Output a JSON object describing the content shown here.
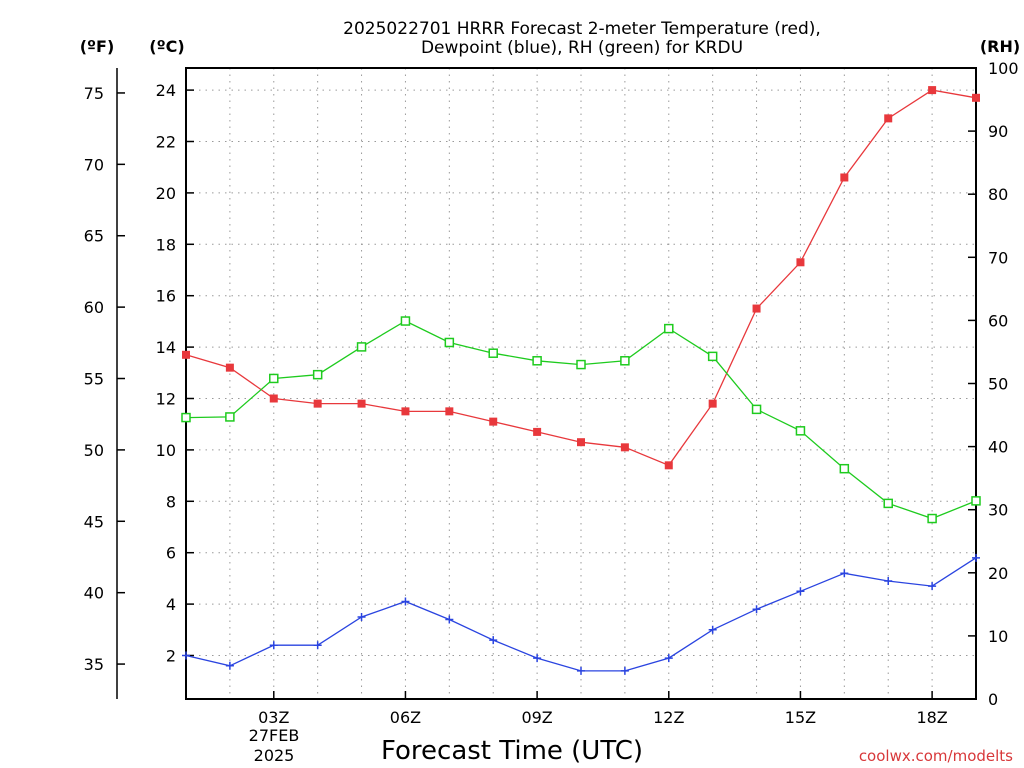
{
  "title_line1": "2025022701 HRRR Forecast 2-meter Temperature (red),",
  "title_line2": "Dewpoint (blue), RH (green) for KRDU",
  "units": {
    "f": "(ºF)",
    "c": "(ºC)",
    "rh": "(RH)"
  },
  "xlabel": "Forecast Time (UTC)",
  "credit": "coolwx.com/modelts",
  "date_label": {
    "day": "27FEB",
    "year": "2025"
  },
  "colors": {
    "temperature": "#e8383c",
    "dewpoint": "#2a44e0",
    "rh": "#1ecb1e",
    "axis": "#000000",
    "grid": "#9a9a9a"
  },
  "chart_data": {
    "type": "line",
    "title": "2025022701 HRRR Forecast 2-meter Temperature (red), Dewpoint (blue), RH (green) for KRDU",
    "xlabel": "Forecast Time (UTC)",
    "x_hours": [
      1,
      2,
      3,
      4,
      5,
      6,
      7,
      8,
      9,
      10,
      11,
      12,
      13,
      14,
      15,
      16,
      17,
      18,
      19
    ],
    "xlim": [
      1,
      19
    ],
    "x_ticks": [
      {
        "hour": 3,
        "label": "03Z"
      },
      {
        "hour": 6,
        "label": "06Z"
      },
      {
        "hour": 9,
        "label": "09Z"
      },
      {
        "hour": 12,
        "label": "12Z"
      },
      {
        "hour": 15,
        "label": "15Z"
      },
      {
        "hour": 18,
        "label": "18Z"
      }
    ],
    "y_celsius": {
      "ticks": [
        2,
        4,
        6,
        8,
        10,
        12,
        14,
        16,
        18,
        20,
        22,
        24
      ],
      "ylim": [
        0.2,
        24.9
      ]
    },
    "y_fahrenheit": {
      "ticks": [
        35,
        40,
        45,
        50,
        55,
        60,
        65,
        70,
        75
      ]
    },
    "y_rh": {
      "ticks": [
        0,
        10,
        20,
        30,
        40,
        50,
        60,
        70,
        80,
        90,
        100
      ],
      "ylim": [
        0,
        100
      ]
    },
    "grid": true,
    "series": [
      {
        "name": "Temperature",
        "axis": "celsius",
        "marker": "filled-square",
        "values": [
          13.7,
          13.2,
          12.0,
          11.8,
          11.8,
          11.5,
          11.5,
          11.1,
          10.7,
          10.3,
          10.1,
          9.4,
          11.8,
          15.5,
          17.3,
          20.6,
          22.9,
          24.0,
          23.7
        ]
      },
      {
        "name": "Dewpoint",
        "axis": "celsius",
        "marker": "plus",
        "values": [
          2.0,
          1.6,
          2.4,
          2.4,
          3.5,
          4.1,
          3.4,
          2.6,
          1.9,
          1.4,
          1.4,
          1.9,
          3.0,
          3.8,
          4.5,
          5.2,
          4.9,
          4.7,
          5.8
        ]
      },
      {
        "name": "RH",
        "axis": "rh",
        "marker": "open-square",
        "values": [
          44.6,
          44.7,
          50.8,
          51.4,
          55.8,
          59.9,
          56.5,
          54.8,
          53.6,
          53.0,
          53.6,
          58.7,
          54.3,
          45.9,
          42.5,
          36.5,
          31.0,
          28.6,
          31.4
        ]
      }
    ]
  }
}
